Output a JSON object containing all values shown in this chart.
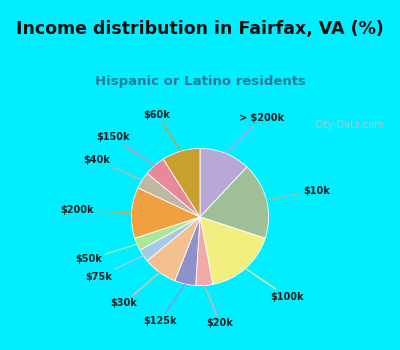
{
  "title": "Income distribution in Fairfax, VA (%)",
  "subtitle": "Hispanic or Latino residents",
  "bg_top": "#00eeff",
  "bg_chart": "#d6f0e8",
  "watermark": "City-Data.com",
  "labels": [
    "> $200k",
    "$10k",
    "$100k",
    "$20k",
    "$125k",
    "$30k",
    "$75k",
    "$50k",
    "$200k",
    "$40k",
    "$150k",
    "$60k"
  ],
  "values": [
    12,
    18,
    17,
    4,
    5,
    8,
    3,
    3,
    12,
    4,
    5,
    9
  ],
  "colors": [
    "#b8a8d8",
    "#9ebf98",
    "#f0ef80",
    "#f0aaaa",
    "#9090cc",
    "#f5c090",
    "#a8c8e8",
    "#aae898",
    "#f0a040",
    "#c0b8a0",
    "#e88898",
    "#c8a030"
  ],
  "startangle": 90,
  "pct_distance": 0.75,
  "label_distance": 1.28
}
